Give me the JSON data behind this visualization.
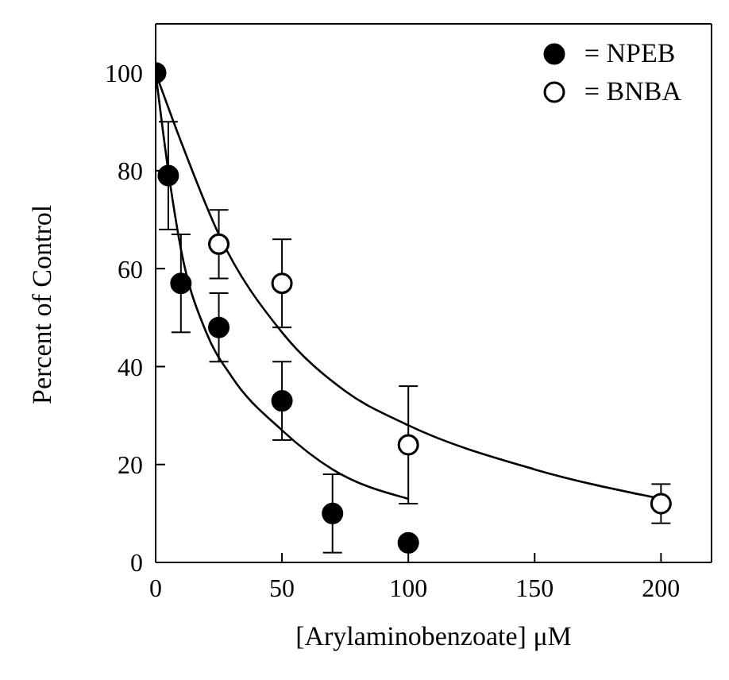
{
  "chart_data": {
    "type": "scatter",
    "xlabel": "[Arylaminobenzoate]  μM",
    "ylabel": "Percent of Control",
    "xlim": [
      0,
      220
    ],
    "xticks": [
      0,
      50,
      100,
      150,
      200
    ],
    "ylim": [
      0,
      110
    ],
    "yticks": [
      0,
      20,
      40,
      60,
      80,
      100
    ],
    "grid": false,
    "legend": "top right",
    "series": [
      {
        "name": "= NPEB",
        "color": "#000000",
        "marker": "circle",
        "x": [
          0,
          5,
          10,
          25,
          50,
          70,
          100
        ],
        "values": [
          100,
          79,
          57,
          48,
          33,
          10,
          4
        ],
        "errors": [
          null,
          11,
          10,
          7,
          8,
          8,
          null
        ]
      },
      {
        "name": "= BNBA",
        "color": "#ffffff",
        "marker": "circle",
        "x": [
          25,
          50,
          100,
          200
        ],
        "values": [
          65,
          57,
          24,
          12
        ],
        "errors": [
          7,
          9,
          12,
          4
        ]
      },
      {
        "type": "line",
        "color": "#000000",
        "marker": "none",
        "x": [
          0,
          5,
          10,
          20,
          30,
          50,
          70,
          100
        ],
        "values": [
          100,
          80,
          64,
          47,
          38,
          27,
          19,
          13
        ]
      },
      {
        "type": "line",
        "color": "#000000",
        "marker": "none",
        "x": [
          0,
          10,
          25,
          50,
          75,
          100,
          150,
          200
        ],
        "values": [
          100,
          86,
          67,
          47,
          35,
          28,
          19,
          13
        ]
      }
    ]
  }
}
